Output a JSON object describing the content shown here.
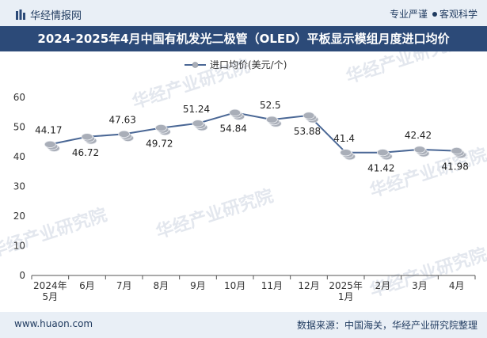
{
  "header": {
    "brand": "华经情报网",
    "tagline_left": "专业严谨",
    "tagline_right": "客观科学"
  },
  "footer": {
    "url": "www.huaon.com",
    "source": "数据来源：中国海关，华经产业研究院整理"
  },
  "watermark": "华经产业研究院",
  "colors": {
    "line": "#4a6795",
    "marker": "#a9aeb8",
    "title_bg": "#2c4a78",
    "band_bg": "#e9eff6"
  },
  "chart_data": {
    "type": "line",
    "title": "2024-2025年4月中国有机发光二极管（OLED）平板显示模组月度进口均价",
    "legend_position": "top-center",
    "grid": false,
    "categories": [
      [
        "2024年",
        "5月"
      ],
      [
        "6月"
      ],
      [
        "7月"
      ],
      [
        "8月"
      ],
      [
        "9月"
      ],
      [
        "10月"
      ],
      [
        "11月"
      ],
      [
        "12月"
      ],
      [
        "2025年",
        "1月"
      ],
      [
        "2月"
      ],
      [
        "3月"
      ],
      [
        "4月"
      ]
    ],
    "series": [
      {
        "name": "进口均价(美元/个)",
        "values": [
          44.17,
          46.72,
          47.63,
          49.72,
          51.24,
          54.84,
          52.5,
          53.88,
          41.4,
          41.42,
          42.42,
          41.98
        ],
        "labels": [
          "44.17",
          "46.72",
          "47.63",
          "49.72",
          "51.24",
          "54.84",
          "52.5",
          "53.88",
          "41.4",
          "41.42",
          "42.42",
          "41.98"
        ],
        "label_positions": [
          "above",
          "below",
          "above",
          "below",
          "above",
          "below",
          "above",
          "below",
          "above",
          "below",
          "above",
          "below"
        ]
      }
    ],
    "yticks": [
      "0",
      "10",
      "20",
      "30",
      "40",
      "50",
      "60"
    ],
    "ylim": [
      0,
      60
    ],
    "xlabel": "",
    "ylabel": ""
  }
}
